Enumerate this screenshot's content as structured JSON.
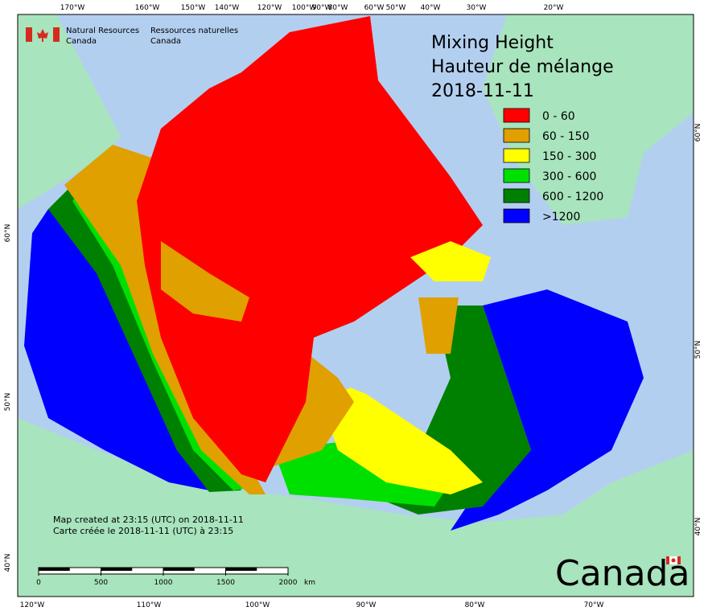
{
  "header": {
    "agency_en": [
      "Natural Resources",
      "Canada"
    ],
    "agency_fr": [
      "Ressources naturelles",
      "Canada"
    ]
  },
  "title": [
    "Mixing Height",
    "Hauteur de mélange",
    "2018-11-11"
  ],
  "legend": [
    {
      "label": "0 - 60",
      "color": "#ff0000"
    },
    {
      "label": "60 - 150",
      "color": "#dfa000"
    },
    {
      "label": "150 - 300",
      "color": "#ffff00"
    },
    {
      "label": "300 - 600",
      "color": "#00e000"
    },
    {
      "label": "600 - 1200",
      "color": "#008000"
    },
    {
      "label": ">1200",
      "color": "#0000ff"
    }
  ],
  "notes": [
    "Map created at 23:15 (UTC) on 2018-11-11",
    "Carte créée le 2018-11-11 (UTC) à 23:15"
  ],
  "scale_bar": {
    "ticks": [
      0,
      500,
      1000,
      1500,
      2000
    ],
    "unit": "km"
  },
  "graticule": {
    "top": [
      "170°W",
      "160°W",
      "150°W",
      "140°W",
      "120°W",
      "100°W",
      "90°W",
      "80°W",
      "60°W",
      "50°W",
      "40°W",
      "30°W",
      "20°W"
    ],
    "bottom": [
      "120°W",
      "110°W",
      "100°W",
      "90°W",
      "80°W",
      "70°W"
    ],
    "left": [
      "60°N",
      "50°N",
      "40°N"
    ],
    "right": [
      "60°N",
      "50°N",
      "40°N"
    ]
  },
  "wordmark": "Canada"
}
